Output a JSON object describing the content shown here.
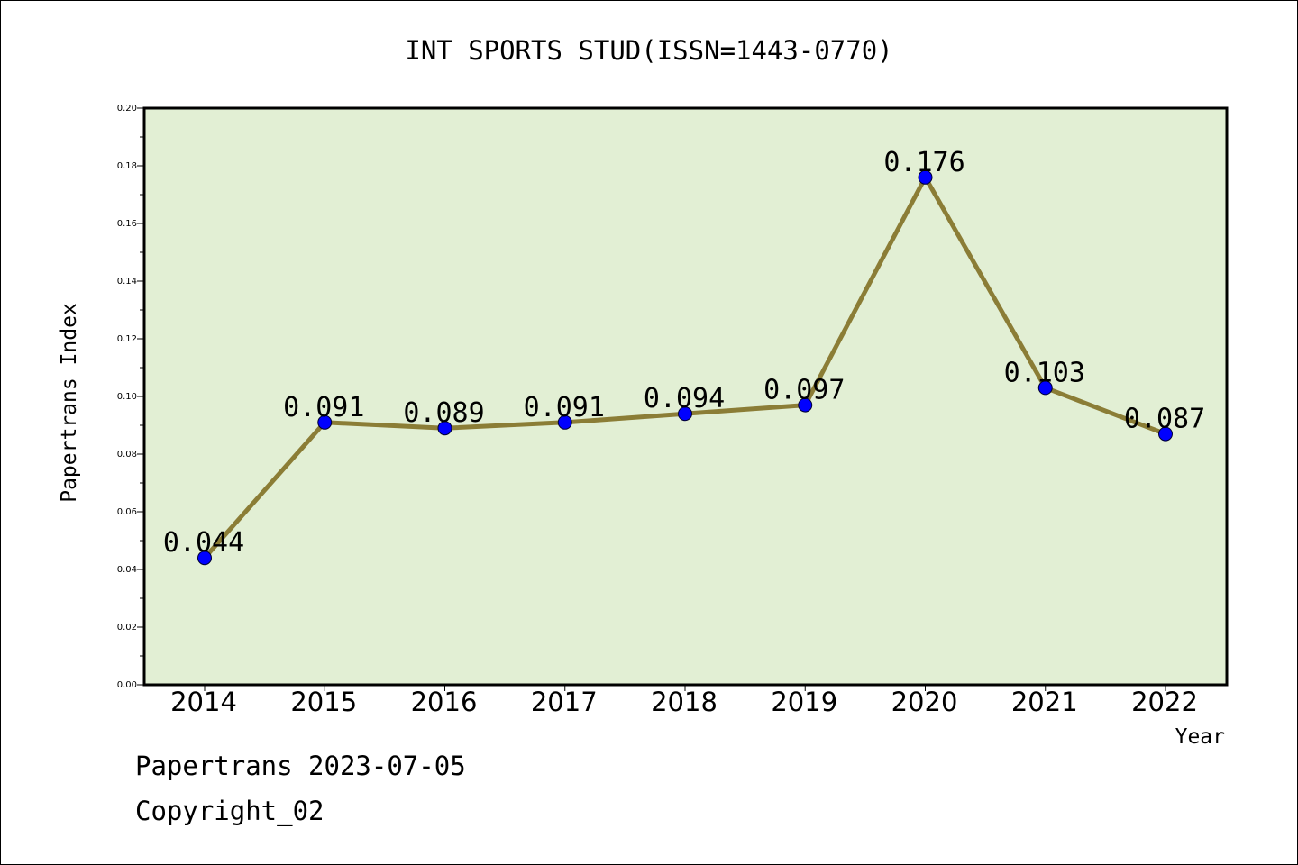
{
  "chart_data": {
    "type": "line",
    "title": "INT SPORTS STUD(ISSN=1443-0770)",
    "xlabel": "Year",
    "ylabel": "Papertrans Index",
    "categories": [
      "2014",
      "2015",
      "2016",
      "2017",
      "2018",
      "2019",
      "2020",
      "2021",
      "2022"
    ],
    "series": [
      {
        "values": [
          0.044,
          0.091,
          0.089,
          0.091,
          0.094,
          0.097,
          0.176,
          0.103,
          0.087
        ]
      }
    ],
    "data_labels": [
      "0.044",
      "0.091",
      "0.089",
      "0.091",
      "0.094",
      "0.097",
      "0.176",
      "0.103",
      "0.087"
    ],
    "y_ticks": [
      "0.00",
      "0.02",
      "0.04",
      "0.06",
      "0.08",
      "0.10",
      "0.12",
      "0.14",
      "0.16",
      "0.18",
      "0.20"
    ],
    "ylim": [
      0,
      0.2
    ],
    "grid": false,
    "colors": {
      "plot_background": "#e2efd4",
      "line": "#8b7d36",
      "marker": "#0000ff"
    }
  },
  "footer": {
    "line1": "Papertrans 2023-07-05",
    "line2": "Copyright_02"
  }
}
